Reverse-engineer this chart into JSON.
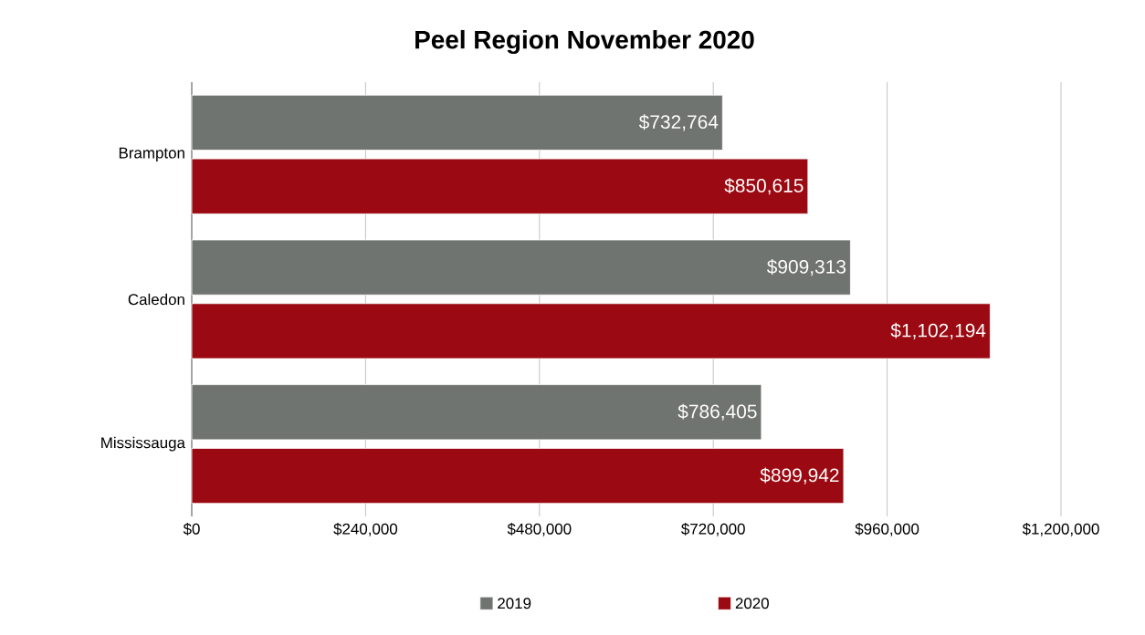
{
  "chart_data": {
    "type": "bar",
    "orientation": "horizontal",
    "title": "Peel Region November 2020",
    "categories": [
      "Brampton",
      "Caledon",
      "Mississauga"
    ],
    "series": [
      {
        "name": "2019",
        "color": "#707470",
        "values": [
          732764,
          909313,
          786405
        ],
        "value_labels": [
          "$732,764",
          "$909,313",
          "$786,405"
        ]
      },
      {
        "name": "2020",
        "color": "#9b0a12",
        "values": [
          850615,
          1102194,
          899942
        ],
        "value_labels": [
          "$850,615",
          "$1,102,194",
          "$899,942"
        ]
      }
    ],
    "xlim": [
      0,
      1200000
    ],
    "xticks": [
      {
        "value": 0,
        "label": "$0"
      },
      {
        "value": 240000,
        "label": "$240,000"
      },
      {
        "value": 480000,
        "label": "$480,000"
      },
      {
        "value": 720000,
        "label": "$720,000"
      },
      {
        "value": 960000,
        "label": "$960,000"
      },
      {
        "value": 1200000,
        "label": "$1,200,000"
      }
    ],
    "grid": "x",
    "legend": "bottom"
  }
}
